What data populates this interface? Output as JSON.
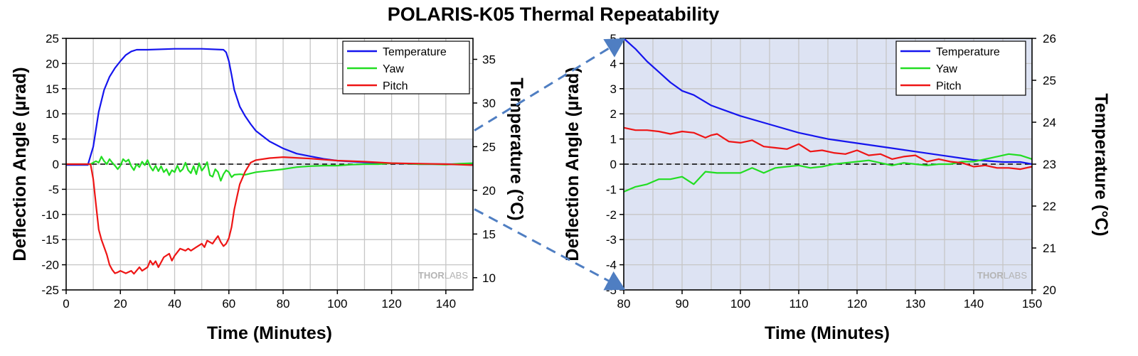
{
  "title": "POLARIS-K05 Thermal Repeatability",
  "watermark": {
    "bold": "THOR",
    "light": "LABS"
  },
  "colors": {
    "temperature": "#1515ee",
    "yaw": "#22dd22",
    "pitch": "#ee1515",
    "highlight": "#dde3f3",
    "grid": "#c6c6c6",
    "connector": "#4f7ec2"
  },
  "chart_data": [
    {
      "type": "line",
      "xlabel": "Time (Minutes)",
      "ylabel": "Deflection Angle (µrad)",
      "y2label": "Temperature (°C)",
      "xlim": [
        0,
        150
      ],
      "ylim": [
        -25,
        25
      ],
      "y2lim": [
        8.6,
        37.4
      ],
      "xticks": [
        0,
        20,
        40,
        60,
        80,
        100,
        120,
        140
      ],
      "yticks": [
        -25,
        -20,
        -15,
        -10,
        -5,
        0,
        5,
        10,
        15,
        20,
        25
      ],
      "y2ticks": [
        10,
        15,
        20,
        25,
        30,
        35
      ],
      "grid": true,
      "zero_line": true,
      "legend_position": "top-right",
      "highlight_region": {
        "x": [
          80,
          150
        ],
        "y": [
          -5,
          5
        ]
      },
      "series": [
        {
          "name": "Temperature",
          "axis": "right",
          "x": [
            0,
            8,
            10,
            12,
            14,
            16,
            18,
            20,
            22,
            24,
            26,
            30,
            40,
            50,
            58,
            59,
            60,
            61,
            62,
            64,
            66,
            68,
            70,
            75,
            80,
            85,
            90,
            95,
            100,
            110,
            120,
            130,
            140,
            150
          ],
          "y": [
            22.9,
            22.9,
            25,
            29,
            31.5,
            33,
            34,
            34.8,
            35.5,
            35.9,
            36.1,
            36.1,
            36.2,
            36.2,
            36.1,
            35.8,
            34.8,
            33.2,
            31.5,
            29.6,
            28.5,
            27.6,
            26.8,
            25.6,
            24.8,
            24.2,
            23.9,
            23.6,
            23.4,
            23.2,
            23.1,
            23.0,
            23.0,
            23.0
          ]
        },
        {
          "name": "Yaw",
          "axis": "left",
          "x": [
            0,
            5,
            9,
            11,
            12,
            13,
            14,
            15,
            16,
            17,
            18,
            19,
            20,
            21,
            22,
            23,
            24,
            25,
            26,
            27,
            28,
            29,
            30,
            31,
            32,
            33,
            34,
            35,
            36,
            37,
            38,
            39,
            40,
            41,
            42,
            43,
            44,
            45,
            46,
            47,
            48,
            49,
            50,
            51,
            52,
            53,
            54,
            55,
            56,
            57,
            58,
            59,
            60,
            61,
            62,
            64,
            66,
            70,
            75,
            80,
            85,
            90,
            95,
            100,
            105,
            110,
            115,
            120,
            125,
            130,
            135,
            140,
            145,
            150
          ],
          "y": [
            0,
            0,
            0,
            0.6,
            0.3,
            1.5,
            0.6,
            0,
            1.0,
            0.3,
            -0.3,
            -1.0,
            -0.3,
            1.0,
            0.5,
            0.9,
            -0.4,
            -1.2,
            0,
            -0.6,
            0.5,
            -0.2,
            0.8,
            -0.5,
            -1.3,
            -0.3,
            -1.4,
            -0.4,
            -1.6,
            -1.0,
            -2.2,
            -1.2,
            -1.6,
            -0.3,
            -1.5,
            -1.0,
            0.3,
            -1.2,
            -1.8,
            -0.4,
            -2.0,
            0.2,
            -1.3,
            -0.6,
            0.4,
            -2.2,
            -2.5,
            -1.0,
            -1.6,
            -3.3,
            -2.0,
            -1.2,
            -1.6,
            -2.6,
            -2.1,
            -2.0,
            -2.1,
            -1.6,
            -1.3,
            -1.0,
            -0.6,
            -0.4,
            -0.3,
            -0.3,
            -0.1,
            0,
            0,
            0.2,
            0.1,
            0,
            0,
            -0.1,
            0.1,
            0.2
          ]
        },
        {
          "name": "Pitch",
          "axis": "left",
          "x": [
            0,
            5,
            9,
            10,
            11,
            12,
            13,
            14,
            15,
            16,
            17,
            18,
            19,
            20,
            22,
            24,
            25,
            27,
            28,
            30,
            31,
            32,
            33,
            34,
            35,
            36,
            38,
            39,
            40,
            42,
            44,
            45,
            46,
            48,
            50,
            51,
            52,
            54,
            55,
            56,
            57,
            58,
            59,
            60,
            61,
            62,
            63,
            64,
            66,
            68,
            70,
            75,
            80,
            90,
            100,
            110,
            120,
            130,
            140,
            150
          ],
          "y": [
            0,
            0,
            0,
            -3,
            -8,
            -13,
            -15,
            -16.5,
            -18,
            -20,
            -21,
            -21.7,
            -21.5,
            -21.2,
            -21.7,
            -21.2,
            -21.8,
            -20.5,
            -21.2,
            -20.5,
            -19.2,
            -20,
            -19.3,
            -20.5,
            -19.5,
            -18.5,
            -17.8,
            -19.2,
            -18.2,
            -16.8,
            -17.2,
            -16.8,
            -17.2,
            -16.5,
            -15.8,
            -16.5,
            -15.2,
            -15.8,
            -15,
            -14.3,
            -15.5,
            -16.3,
            -15.8,
            -14.7,
            -12.5,
            -9,
            -6.5,
            -4,
            -1.5,
            0.3,
            0.8,
            1.2,
            1.4,
            1.1,
            0.7,
            0.5,
            0.2,
            0.1,
            0,
            -0.2
          ]
        }
      ]
    },
    {
      "type": "line",
      "xlabel": "Time (Minutes)",
      "ylabel": "Deflection Angle (µrad)",
      "y2label": "Temperature (°C)",
      "xlim": [
        80,
        150
      ],
      "ylim": [
        -5,
        5
      ],
      "y2lim": [
        20,
        26
      ],
      "xticks": [
        80,
        90,
        100,
        110,
        120,
        130,
        140,
        150
      ],
      "yticks": [
        -5,
        -4,
        -3,
        -2,
        -1,
        0,
        1,
        2,
        3,
        4,
        5
      ],
      "y2ticks": [
        20,
        21,
        22,
        23,
        24,
        25,
        26
      ],
      "grid": true,
      "zero_line": true,
      "legend_position": "top-right",
      "series": [
        {
          "name": "Temperature",
          "axis": "right",
          "x": [
            80,
            82,
            84,
            86,
            88,
            90,
            92,
            95,
            100,
            105,
            110,
            115,
            120,
            125,
            130,
            135,
            140,
            145,
            148,
            150
          ],
          "y": [
            26.0,
            25.75,
            25.45,
            25.2,
            24.95,
            24.75,
            24.65,
            24.4,
            24.15,
            23.95,
            23.75,
            23.6,
            23.5,
            23.4,
            23.3,
            23.2,
            23.1,
            23.05,
            23.05,
            23.0
          ]
        },
        {
          "name": "Yaw",
          "axis": "left",
          "x": [
            80,
            82,
            84,
            86,
            88,
            90,
            92,
            94,
            96,
            98,
            100,
            102,
            104,
            106,
            108,
            110,
            112,
            114,
            116,
            118,
            120,
            122,
            124,
            126,
            128,
            130,
            132,
            134,
            136,
            138,
            140,
            142,
            144,
            146,
            148,
            150
          ],
          "y": [
            -1.1,
            -0.9,
            -0.8,
            -0.6,
            -0.6,
            -0.5,
            -0.8,
            -0.3,
            -0.35,
            -0.35,
            -0.35,
            -0.15,
            -0.35,
            -0.15,
            -0.1,
            -0.05,
            -0.15,
            -0.1,
            0,
            0.05,
            0.1,
            0.15,
            0.05,
            -0.05,
            0.05,
            0,
            -0.05,
            0,
            0,
            0.1,
            0.1,
            0.2,
            0.3,
            0.4,
            0.35,
            0.2
          ]
        },
        {
          "name": "Pitch",
          "axis": "left",
          "x": [
            80,
            82,
            84,
            86,
            88,
            90,
            92,
            94,
            95,
            96,
            98,
            100,
            102,
            104,
            106,
            108,
            110,
            112,
            114,
            116,
            118,
            120,
            122,
            124,
            126,
            128,
            130,
            132,
            134,
            136,
            138,
            140,
            142,
            144,
            146,
            148,
            150
          ],
          "y": [
            1.45,
            1.35,
            1.35,
            1.3,
            1.2,
            1.3,
            1.25,
            1.05,
            1.15,
            1.2,
            0.9,
            0.85,
            0.95,
            0.7,
            0.65,
            0.6,
            0.8,
            0.5,
            0.55,
            0.45,
            0.4,
            0.55,
            0.35,
            0.4,
            0.2,
            0.3,
            0.35,
            0.1,
            0.2,
            0.1,
            0.05,
            -0.1,
            -0.05,
            -0.15,
            -0.15,
            -0.2,
            -0.1
          ]
        }
      ]
    }
  ]
}
